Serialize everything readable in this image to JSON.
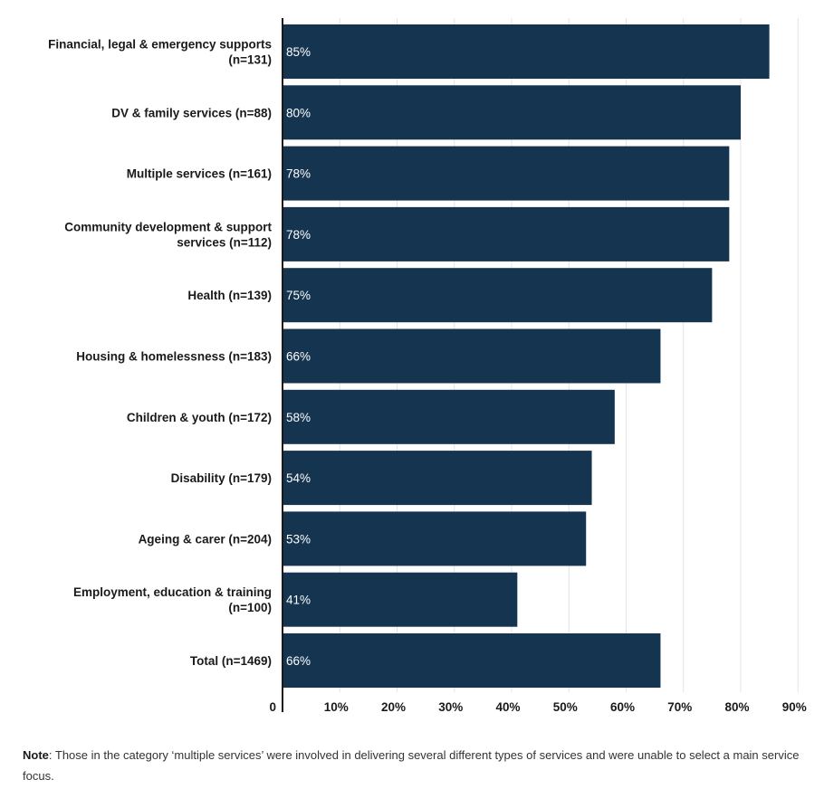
{
  "chart_data": {
    "type": "bar",
    "orientation": "horizontal",
    "categories": [
      [
        "Financial, legal & emergency supports",
        "(n=131)"
      ],
      [
        "DV & family services (n=88)"
      ],
      [
        "Multiple services (n=161)"
      ],
      [
        "Community development & support",
        "services (n=112)"
      ],
      [
        "Health (n=139)"
      ],
      [
        "Housing & homelessness (n=183)"
      ],
      [
        "Children & youth (n=172)"
      ],
      [
        "Disability (n=179)"
      ],
      [
        "Ageing & carer (n=204)"
      ],
      [
        "Employment, education & training",
        "(n=100)"
      ],
      [
        "Total (n=1469)"
      ]
    ],
    "values": [
      85,
      80,
      78,
      78,
      75,
      66,
      58,
      54,
      53,
      41,
      66
    ],
    "value_labels": [
      "85%",
      "80%",
      "78%",
      "78%",
      "75%",
      "66%",
      "58%",
      "54%",
      "53%",
      "41%",
      "66%"
    ],
    "xlim": [
      0,
      90
    ],
    "x_ticks": [
      0,
      10,
      20,
      30,
      40,
      50,
      60,
      70,
      80,
      90
    ],
    "x_tick_labels": [
      "0",
      "10%",
      "20%",
      "30%",
      "40%",
      "50%",
      "60%",
      "70%",
      "80%",
      "90%"
    ],
    "bar_color": "#14344f",
    "grid": true,
    "grid_color": "#e4e4e4"
  },
  "note": {
    "label": "Note",
    "text": ": Those in the category ‘multiple services’ were involved in delivering several different types of services and were unable to select a main service focus."
  }
}
